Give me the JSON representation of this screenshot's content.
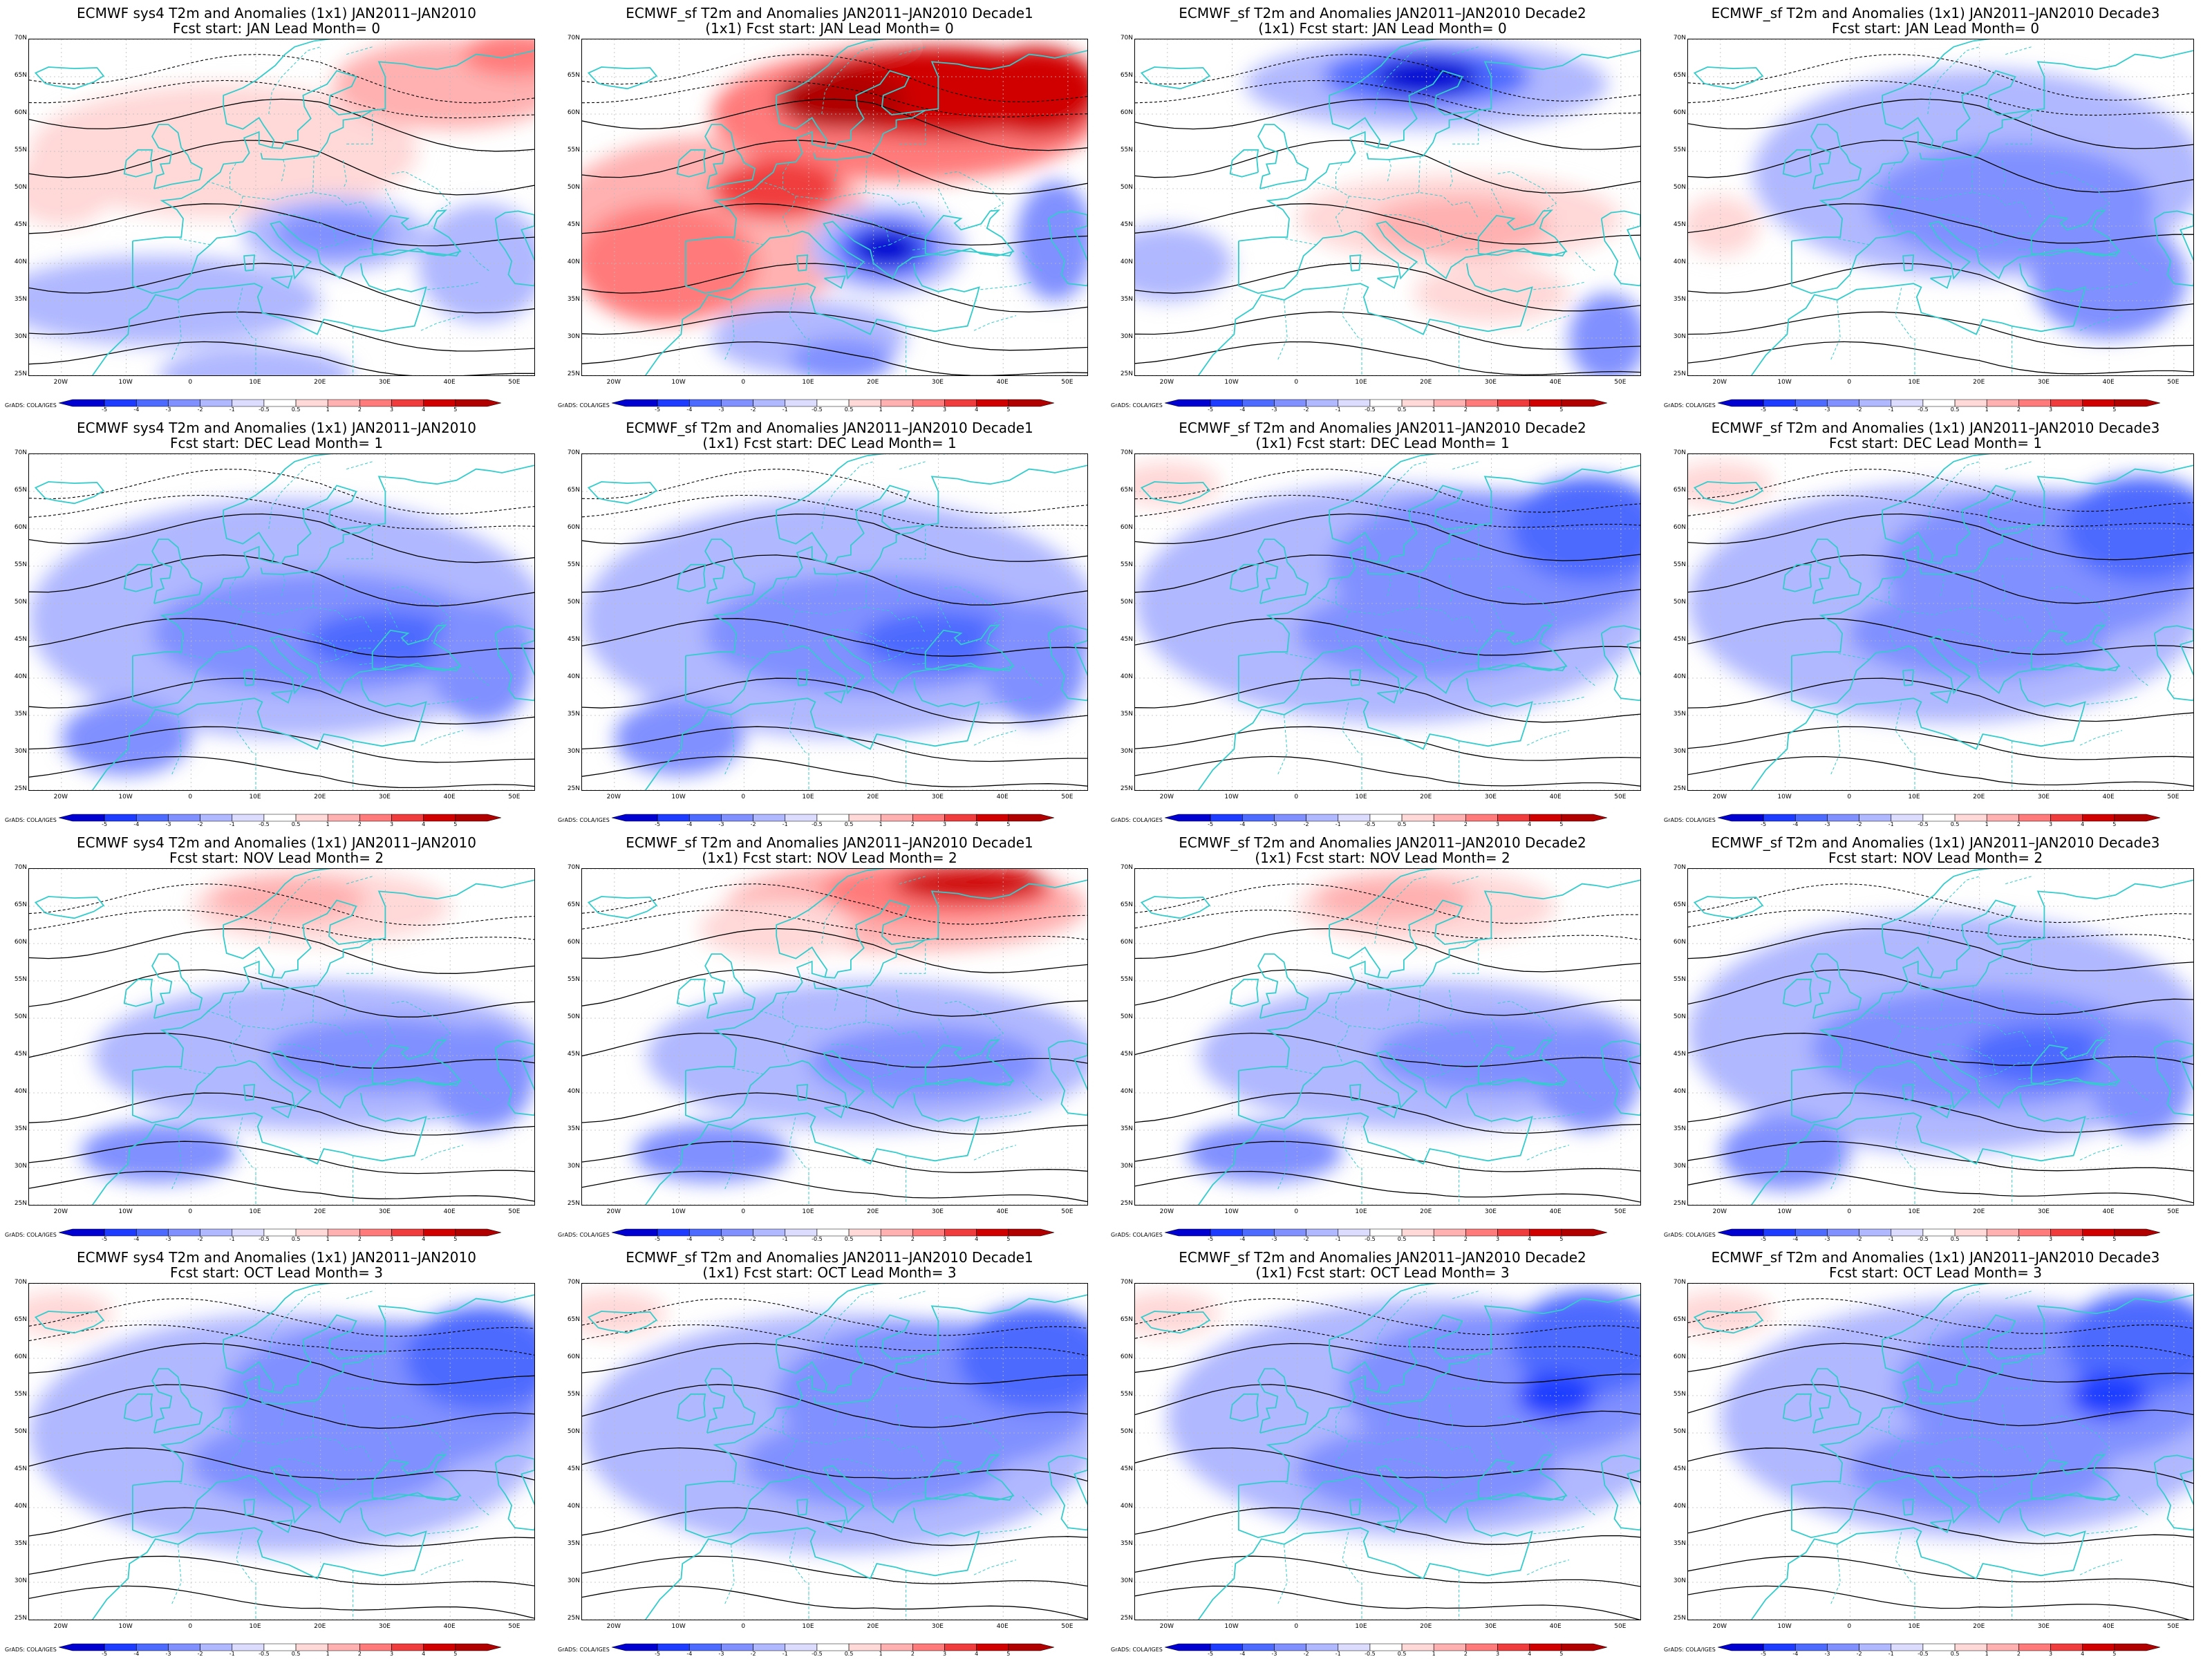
{
  "panels": [
    {
      "title": "ECMWF sys4 T2m and Anomalies (1x1) JAN2011–JAN2010",
      "subtitle": "Fcst start: JAN  Lead Month= 0",
      "anomaly": "mixed_warm_north",
      "lead_month": 0
    },
    {
      "title": "ECMWF_sf T2m and Anomalies JAN2011–JAN2010 Decade1",
      "subtitle": "(1x1) Fcst start: JAN  Lead Month= 0",
      "anomaly": "strong_warm_cold_balkans",
      "lead_month": 0
    },
    {
      "title": "ECMWF_sf T2m and Anomalies JAN2011–JAN2010 Decade2",
      "subtitle": "(1x1) Fcst start: JAN  Lead Month= 0",
      "anomaly": "cold_north_warm_south",
      "lead_month": 0
    },
    {
      "title": "ECMWF_sf T2m and Anomalies (1x1) JAN2011–JAN2010 Decade3",
      "subtitle": "Fcst start: JAN  Lead Month= 0",
      "anomaly": "mostly_cold",
      "lead_month": 0
    },
    {
      "title": "ECMWF sys4 T2m and Anomalies (1x1) JAN2011–JAN2010",
      "subtitle": "Fcst start: DEC  Lead Month= 1",
      "anomaly": "cold",
      "lead_month": 1
    },
    {
      "title": "ECMWF_sf T2m and Anomalies JAN2011–JAN2010 Decade1",
      "subtitle": "(1x1) Fcst start: DEC  Lead Month= 1",
      "anomaly": "cold",
      "lead_month": 1
    },
    {
      "title": "ECMWF_sf T2m and Anomalies JAN2011–JAN2010 Decade2",
      "subtitle": "(1x1) Fcst start: DEC  Lead Month= 1",
      "anomaly": "cold_east",
      "lead_month": 1
    },
    {
      "title": "ECMWF_sf T2m and Anomalies (1x1) JAN2011–JAN2010 Decade3",
      "subtitle": "Fcst start: DEC  Lead Month= 1",
      "anomaly": "cold_east",
      "lead_month": 1
    },
    {
      "title": "ECMWF sys4 T2m and Anomalies (1x1) JAN2011–JAN2010",
      "subtitle": "Fcst start: NOV  Lead Month= 2",
      "anomaly": "warm_north_cold_south",
      "lead_month": 2
    },
    {
      "title": "ECMWF_sf T2m and Anomalies JAN2011–JAN2010 Decade1",
      "subtitle": "(1x1) Fcst start: NOV  Lead Month= 2",
      "anomaly": "strong_warm_north",
      "lead_month": 2
    },
    {
      "title": "ECMWF_sf T2m and Anomalies JAN2011–JAN2010 Decade2",
      "subtitle": "(1x1) Fcst start: NOV  Lead Month= 2",
      "anomaly": "warm_north_cold_south",
      "lead_month": 2
    },
    {
      "title": "ECMWF_sf T2m and Anomalies (1x1) JAN2011–JAN2010 Decade3",
      "subtitle": "Fcst start: NOV  Lead Month= 2",
      "anomaly": "cold",
      "lead_month": 2
    },
    {
      "title": "ECMWF sys4 T2m and Anomalies (1x1) JAN2011–JAN2010",
      "subtitle": "Fcst start: OCT  Lead Month= 3",
      "anomaly": "cold_east",
      "lead_month": 3
    },
    {
      "title": "ECMWF_sf T2m and Anomalies JAN2011–JAN2010 Decade1",
      "subtitle": "(1x1) Fcst start: OCT  Lead Month= 3",
      "anomaly": "cold_east",
      "lead_month": 3
    },
    {
      "title": "ECMWF_sf T2m and Anomalies JAN2011–JAN2010 Decade2",
      "subtitle": "(1x1) Fcst start: OCT  Lead Month= 3",
      "anomaly": "strong_cold_east",
      "lead_month": 3
    },
    {
      "title": "ECMWF_sf T2m and Anomalies (1x1) JAN2011–JAN2010 Decade3",
      "subtitle": "Fcst start: OCT  Lead Month= 3",
      "anomaly": "strong_cold_east",
      "lead_month": 3
    }
  ],
  "axes": {
    "lat_labels": [
      "70N",
      "65N",
      "60N",
      "55N",
      "50N",
      "45N",
      "40N",
      "35N",
      "30N",
      "25N"
    ],
    "lon_labels": [
      "20W",
      "10W",
      "0",
      "10E",
      "20E",
      "30E",
      "40E",
      "50E"
    ]
  },
  "colorbar": {
    "labels": [
      "-5",
      "-4",
      "-3",
      "-2",
      "-1",
      "-0.5",
      "0.5",
      "1",
      "2",
      "3",
      "4",
      "5"
    ],
    "colors": [
      "#0000d0",
      "#1e3cff",
      "#4d6bff",
      "#8090ff",
      "#b0b8ff",
      "#dcdcff",
      "#ffffff",
      "#ffd8d8",
      "#ffb0b0",
      "#ff7a7a",
      "#f03c3c",
      "#d00000",
      "#b00000"
    ]
  },
  "credit": "GrADS: COLA/IGES",
  "colors": {
    "coast": "#33cccc",
    "contour": "#000000"
  }
}
